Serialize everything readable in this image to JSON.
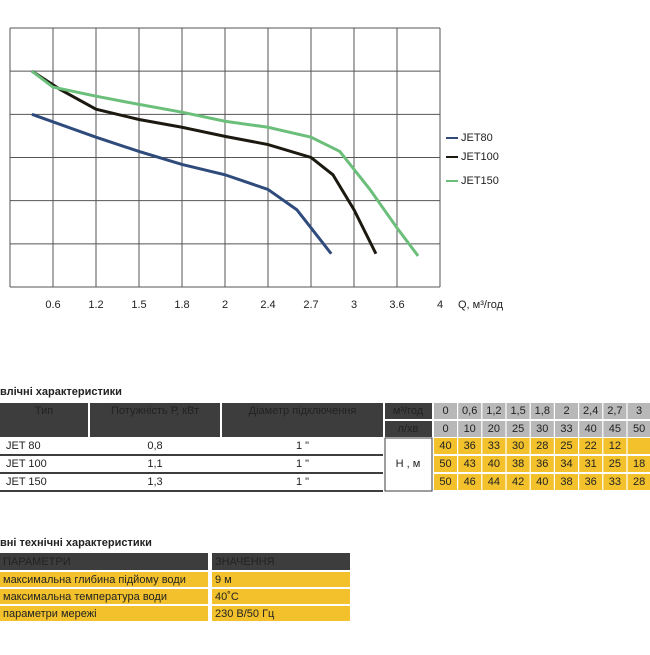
{
  "chart_data": {
    "type": "line",
    "x_label": "Q, м³/год",
    "xlim": [
      0,
      10
    ],
    "ylim": [
      0,
      6
    ],
    "xticks": [
      {
        "value": 1,
        "label": "0.6"
      },
      {
        "value": 2,
        "label": "1.2"
      },
      {
        "value": 3,
        "label": "1.5"
      },
      {
        "value": 4,
        "label": "1.8"
      },
      {
        "value": 5,
        "label": "2"
      },
      {
        "value": 6,
        "label": "2.4"
      },
      {
        "value": 7,
        "label": "2.7"
      },
      {
        "value": 8,
        "label": "3"
      },
      {
        "value": 9,
        "label": "3.6"
      },
      {
        "value": 10,
        "label": "4"
      }
    ],
    "yticks": [
      0,
      1,
      2,
      3,
      4,
      5,
      6
    ],
    "grid": true,
    "series": [
      {
        "name": "JET80",
        "color": "#2f4b7c",
        "x": [
          0.51,
          2,
          3,
          4,
          5,
          6,
          6.67,
          7,
          7.47
        ],
        "values": [
          4.0,
          3.47,
          3.14,
          2.84,
          2.6,
          2.26,
          1.79,
          1.37,
          0.77
        ]
      },
      {
        "name": "JET100",
        "color": "#1c1a10",
        "x": [
          0.51,
          1.16,
          2,
          3,
          4,
          5,
          6,
          7,
          7.51,
          8,
          8.51
        ],
        "values": [
          5.0,
          4.58,
          4.12,
          3.88,
          3.7,
          3.49,
          3.3,
          3.0,
          2.6,
          1.79,
          0.77
        ]
      },
      {
        "name": "JET150",
        "color": "#6cbf7b",
        "x": [
          0.51,
          1,
          2,
          3,
          4,
          5,
          6,
          7,
          7.67,
          8.37,
          9,
          9.49
        ],
        "values": [
          5.0,
          4.63,
          4.42,
          4.23,
          4.05,
          3.84,
          3.7,
          3.47,
          3.14,
          2.26,
          1.37,
          0.72
        ]
      }
    ]
  },
  "table1": {
    "title": "влічні характеристики",
    "header": [
      "Тип",
      "Потужність  Р, кВт",
      "Діаметр підключення"
    ],
    "rows": [
      [
        "JET 80",
        "0,8",
        "1 \""
      ],
      [
        "JET 100",
        "1,1",
        "1 \""
      ],
      [
        "JET 150",
        "1,3",
        "1 \""
      ]
    ],
    "flow_units": [
      "м³/год",
      "л/хв"
    ],
    "flow_m3h": [
      "0",
      "0,6",
      "1,2",
      "1,5",
      "1,8",
      "2",
      "2,4",
      "2,7",
      "3"
    ],
    "flow_lmin": [
      "0",
      "10",
      "20",
      "25",
      "30",
      "33",
      "40",
      "45",
      "50"
    ],
    "head_label": "Н , м",
    "head": [
      [
        "40",
        "36",
        "33",
        "30",
        "28",
        "25",
        "22",
        "12"
      ],
      [
        "50",
        "43",
        "40",
        "38",
        "36",
        "34",
        "31",
        "25",
        "18"
      ],
      [
        "50",
        "46",
        "44",
        "42",
        "40",
        "38",
        "36",
        "33",
        "28"
      ]
    ]
  },
  "table2": {
    "title": "вні технічні характеристики",
    "header": [
      "ПАРАМЕТРИ",
      "ЗНАЧЕННЯ"
    ],
    "rows": [
      [
        "максимальна глибина підйому води",
        "9 м"
      ],
      [
        "максимальна температура води",
        "40˚С"
      ],
      [
        "параметри мережі",
        "230 В/50 Гц"
      ]
    ]
  }
}
